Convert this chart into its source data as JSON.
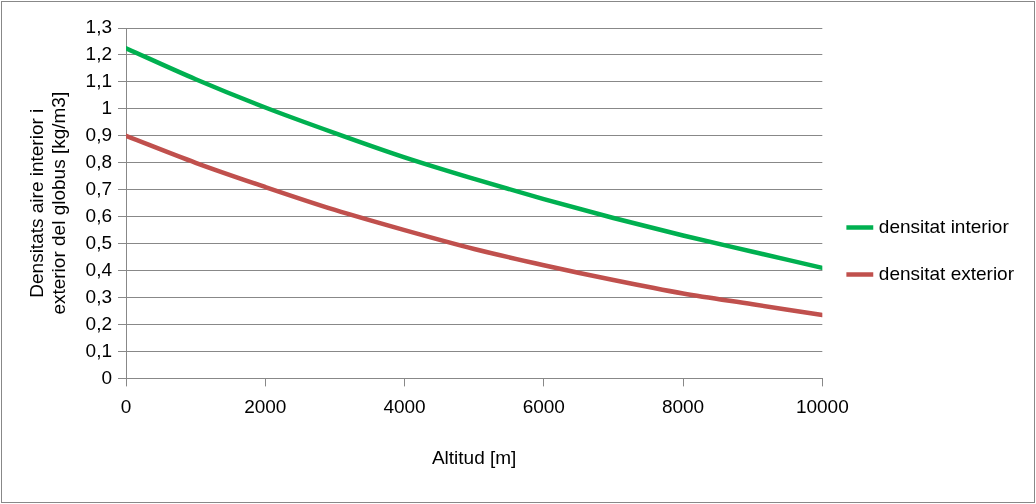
{
  "chart_data": {
    "type": "line",
    "xlabel": "Altitud [m]",
    "ylabel": "Densitats aire interior i exterior del globus [kg/m3]",
    "x": [
      0,
      1000,
      2000,
      3000,
      4000,
      5000,
      6000,
      7000,
      8000,
      9000,
      10000
    ],
    "series": [
      {
        "name": "densitat interior",
        "color": "#00b050",
        "values": [
          1.225,
          1.11,
          1.005,
          0.91,
          0.82,
          0.74,
          0.665,
          0.595,
          0.53,
          0.47,
          0.41
        ]
      },
      {
        "name": "densitat exterior",
        "color": "#c0504d",
        "values": [
          0.9,
          0.8,
          0.71,
          0.625,
          0.55,
          0.48,
          0.42,
          0.365,
          0.315,
          0.275,
          0.235
        ]
      }
    ],
    "xlim": [
      0,
      10000
    ],
    "xticks": [
      0,
      2000,
      4000,
      6000,
      8000,
      10000
    ],
    "ylim": [
      0,
      1.3
    ],
    "yticks": [
      0,
      {
        "value": 0.1,
        "label": "0,1"
      },
      {
        "value": 0.2,
        "label": "0,2"
      },
      {
        "value": 0.3,
        "label": "0,3"
      },
      {
        "value": 0.4,
        "label": "0,4"
      },
      {
        "value": 0.5,
        "label": "0,5"
      },
      {
        "value": 0.6,
        "label": "0,6"
      },
      {
        "value": 0.7,
        "label": "0,7"
      },
      {
        "value": 0.8,
        "label": "0,8"
      },
      {
        "value": 0.9,
        "label": "0,9"
      },
      1,
      {
        "value": 1.1,
        "label": "1,1"
      },
      {
        "value": 1.2,
        "label": "1,2"
      },
      {
        "value": 1.3,
        "label": "1,3"
      }
    ],
    "grid": "y",
    "legend": "right",
    "marker": "none",
    "line_style": "solid"
  }
}
